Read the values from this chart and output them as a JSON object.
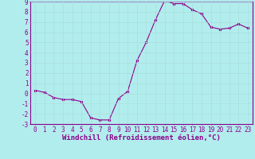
{
  "x": [
    0,
    1,
    2,
    3,
    4,
    5,
    6,
    7,
    8,
    9,
    10,
    11,
    12,
    13,
    14,
    15,
    16,
    17,
    18,
    19,
    20,
    21,
    22,
    23
  ],
  "y": [
    0.3,
    0.1,
    -0.4,
    -0.6,
    -0.6,
    -0.8,
    -2.4,
    -2.6,
    -2.6,
    -0.5,
    0.2,
    3.2,
    5.0,
    7.2,
    9.1,
    8.8,
    8.8,
    8.2,
    7.8,
    6.5,
    6.3,
    6.4,
    6.8,
    6.4
  ],
  "line_color": "#8B008B",
  "marker": "o",
  "marker_size": 2,
  "bg_color": "#b2eded",
  "grid_color": "#aadddd",
  "axis_color": "#8B008B",
  "xlabel": "Windchill (Refroidissement éolien,°C)",
  "xlim": [
    -0.5,
    23.5
  ],
  "ylim": [
    -3,
    9
  ],
  "yticks": [
    -3,
    -2,
    -1,
    0,
    1,
    2,
    3,
    4,
    5,
    6,
    7,
    8,
    9
  ],
  "xticks": [
    0,
    1,
    2,
    3,
    4,
    5,
    6,
    7,
    8,
    9,
    10,
    11,
    12,
    13,
    14,
    15,
    16,
    17,
    18,
    19,
    20,
    21,
    22,
    23
  ],
  "tick_fontsize": 5.5,
  "xlabel_fontsize": 6.5
}
